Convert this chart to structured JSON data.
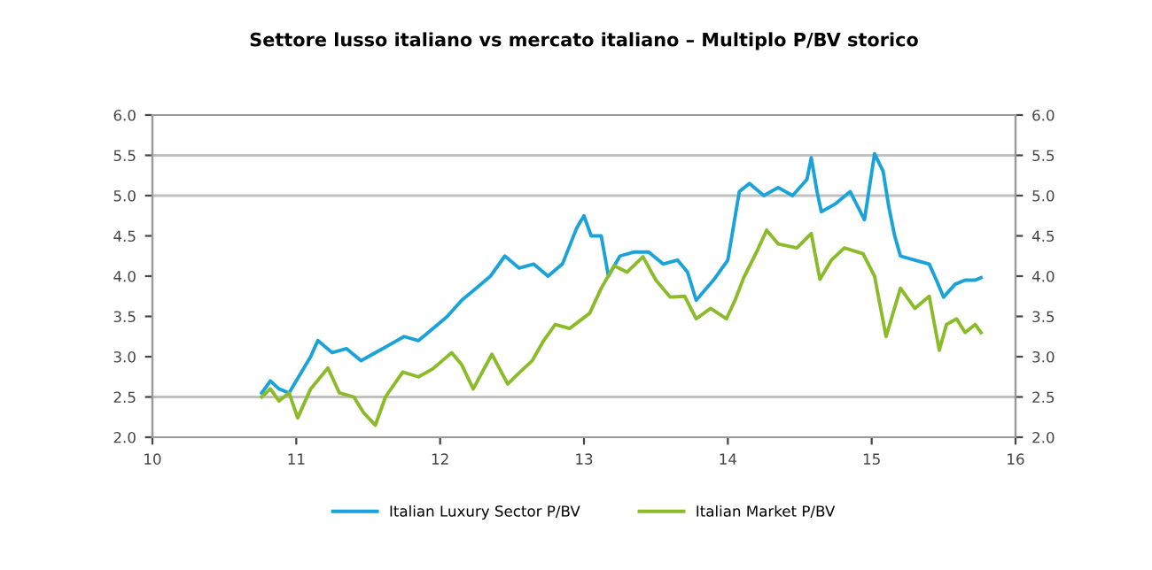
{
  "chart_data": {
    "type": "line",
    "title": "Settore lusso italiano vs mercato italiano – Multiplo P/BV storico",
    "xlim": [
      10,
      16
    ],
    "xticks": [
      10,
      11,
      12,
      13,
      14,
      15,
      16
    ],
    "ylim": [
      2.0,
      6.0
    ],
    "yticks": [
      {
        "value": 2.0,
        "label": "2.0"
      },
      {
        "value": 2.5,
        "label": "2.5"
      },
      {
        "value": 3.0,
        "label": "3.0"
      },
      {
        "value": 3.5,
        "label": "3.5"
      },
      {
        "value": 4.0,
        "label": "4.0"
      },
      {
        "value": 4.5,
        "label": "4.5"
      },
      {
        "value": 5.0,
        "label": "5.0"
      },
      {
        "value": 5.5,
        "label": "5.5"
      },
      {
        "value": 6.0,
        "label": "6.0"
      }
    ],
    "y2lim": [
      2.0,
      6.0
    ],
    "y2ticks": [
      {
        "value": 2.0,
        "label": "2.0"
      },
      {
        "value": 2.5,
        "label": "2.5"
      },
      {
        "value": 3.0,
        "label": "3.0"
      },
      {
        "value": 3.5,
        "label": "3.5"
      },
      {
        "value": 4.0,
        "label": "4.0"
      },
      {
        "value": 4.5,
        "label": "4.5"
      },
      {
        "value": 5.0,
        "label": "5.0"
      },
      {
        "value": 5.5,
        "label": "5.5"
      },
      {
        "value": 6.0,
        "label": "6.0"
      }
    ],
    "ref_lines": [
      {
        "axis": "y",
        "value": 2.5,
        "color": "#c0c0c0"
      },
      {
        "axis": "y",
        "value": 5.0,
        "color": "#c0c0c0"
      },
      {
        "axis": "y",
        "value": 5.5,
        "color": "#c0c0c0"
      }
    ],
    "legend": "bottom",
    "marker": "none",
    "line_style": "solid",
    "series": [
      {
        "name": "Italian Luxury Sector P/BV",
        "color": "#1aa3d9",
        "x": [
          10.76,
          10.82,
          10.88,
          10.95,
          11.0,
          11.1,
          11.15,
          11.25,
          11.35,
          11.45,
          11.55,
          11.65,
          11.75,
          11.85,
          11.95,
          12.05,
          12.15,
          12.25,
          12.35,
          12.45,
          12.55,
          12.65,
          12.75,
          12.85,
          12.95,
          13.0,
          13.05,
          13.12,
          13.17,
          13.25,
          13.35,
          13.45,
          13.55,
          13.65,
          13.72,
          13.78,
          13.9,
          14.0,
          14.08,
          14.15,
          14.25,
          14.35,
          14.45,
          14.55,
          14.58,
          14.62,
          14.65,
          14.75,
          14.85,
          14.95,
          15.02,
          15.08,
          15.12,
          15.16,
          15.2,
          15.3,
          15.4,
          15.45,
          15.5,
          15.58,
          15.65,
          15.72,
          15.76
        ],
        "values": [
          2.55,
          2.7,
          2.6,
          2.55,
          2.7,
          3.0,
          3.2,
          3.05,
          3.1,
          2.95,
          3.05,
          3.15,
          3.25,
          3.2,
          3.35,
          3.5,
          3.7,
          3.85,
          4.0,
          4.25,
          4.1,
          4.15,
          4.0,
          4.15,
          4.6,
          4.75,
          4.5,
          4.5,
          4.0,
          4.25,
          4.3,
          4.3,
          4.15,
          4.2,
          4.05,
          3.7,
          3.95,
          4.2,
          5.05,
          5.15,
          5.0,
          5.1,
          5.0,
          5.2,
          5.47,
          5.05,
          4.8,
          4.9,
          5.05,
          4.7,
          5.52,
          5.3,
          4.85,
          4.5,
          4.25,
          4.2,
          4.15,
          3.95,
          3.74,
          3.9,
          3.95,
          3.95,
          3.98
        ]
      },
      {
        "name": "Italian Market P/BV",
        "color": "#8cbb2a",
        "x": [
          10.76,
          10.82,
          10.88,
          10.95,
          11.01,
          11.1,
          11.22,
          11.3,
          11.4,
          11.47,
          11.55,
          11.62,
          11.74,
          11.85,
          11.95,
          12.08,
          12.15,
          12.23,
          12.36,
          12.47,
          12.55,
          12.64,
          12.72,
          12.8,
          12.9,
          13.04,
          13.12,
          13.21,
          13.3,
          13.41,
          13.5,
          13.6,
          13.7,
          13.78,
          13.88,
          13.99,
          14.05,
          14.11,
          14.2,
          14.27,
          14.35,
          14.48,
          14.58,
          14.64,
          14.72,
          14.81,
          14.94,
          15.02,
          15.1,
          15.2,
          15.3,
          15.4,
          15.47,
          15.52,
          15.59,
          15.65,
          15.72,
          15.76
        ],
        "values": [
          2.5,
          2.6,
          2.45,
          2.55,
          2.24,
          2.6,
          2.86,
          2.55,
          2.5,
          2.3,
          2.15,
          2.5,
          2.81,
          2.75,
          2.85,
          3.05,
          2.9,
          2.6,
          3.03,
          2.66,
          2.8,
          2.95,
          3.2,
          3.4,
          3.35,
          3.54,
          3.85,
          4.13,
          4.05,
          4.24,
          3.95,
          3.74,
          3.75,
          3.47,
          3.6,
          3.47,
          3.7,
          3.98,
          4.3,
          4.57,
          4.4,
          4.35,
          4.53,
          3.96,
          4.2,
          4.35,
          4.28,
          4.0,
          3.25,
          3.85,
          3.6,
          3.75,
          3.08,
          3.4,
          3.47,
          3.3,
          3.4,
          3.3
        ]
      }
    ]
  }
}
